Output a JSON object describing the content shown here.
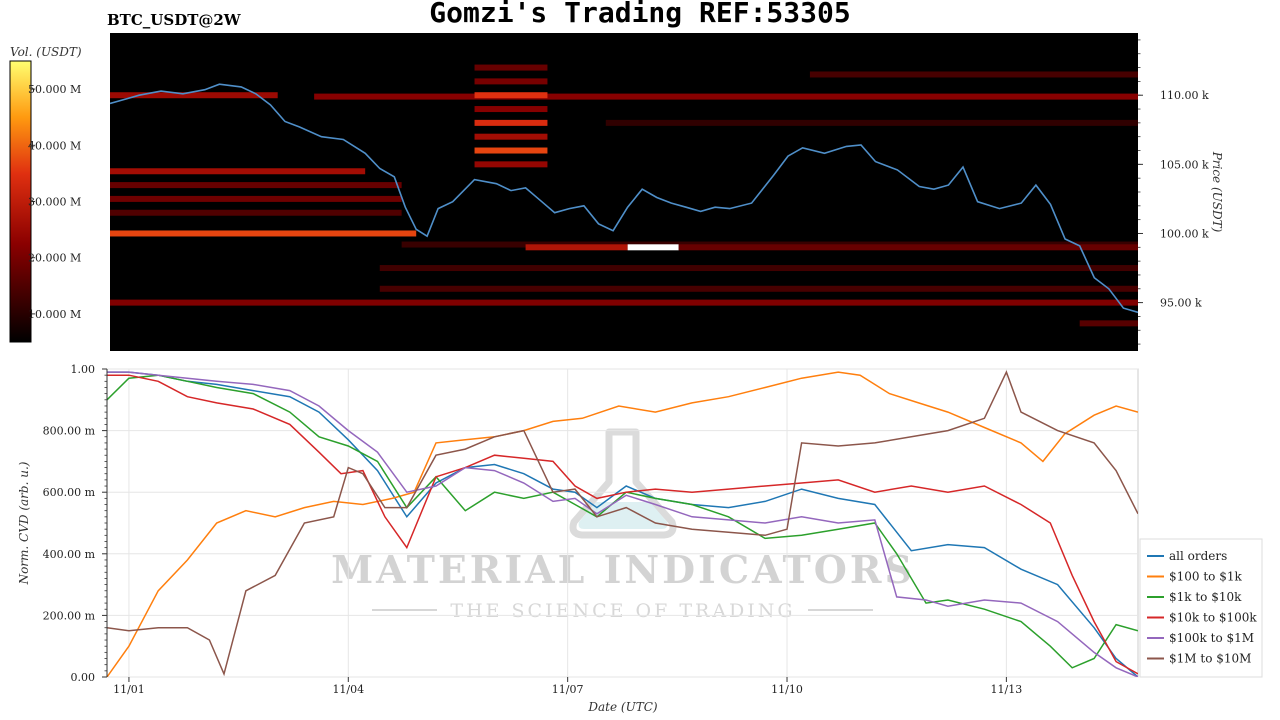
{
  "header": {
    "title": "Gomzi's Trading REF:53305",
    "symbol": "BTC_USDT@2W"
  },
  "colors": {
    "heat_low": "#000000",
    "heat_mid": "#cc1100",
    "heat_high": "#ffff55",
    "price_line": "#4f8fc9"
  },
  "watermark": {
    "brand": "MATERIAL INDICATORS",
    "tagline": "THE SCIENCE OF TRADING"
  },
  "chart_data": [
    {
      "type": "heatmap",
      "colorbar_label": "Vol. (USDT)",
      "colorbar_ticks": [
        "50.000 M",
        "40.000 M",
        "30.000 M",
        "20.000 M",
        "10.000 M"
      ],
      "colorbar_tick_values": [
        50,
        40,
        30,
        20,
        10
      ],
      "colorbar_range": [
        5,
        55
      ],
      "ylabel": "Price (USDT)",
      "y_ticks": [
        "110.00 k",
        "105.00 k",
        "100.00 k",
        "95.00 k"
      ],
      "y_tick_values": [
        110,
        105,
        100,
        95
      ],
      "ylim": [
        91.5,
        114.5
      ],
      "x_tick_values": [
        0.8,
        3.8,
        6.8,
        9.8,
        12.8
      ],
      "xlim": [
        0.5,
        14.6
      ],
      "price_series": {
        "x": [
          0.5,
          0.7,
          0.9,
          1.2,
          1.5,
          1.8,
          2.0,
          2.3,
          2.5,
          2.7,
          2.9,
          3.1,
          3.4,
          3.7,
          4.0,
          4.2,
          4.4,
          4.55,
          4.7,
          4.85,
          5.0,
          5.2,
          5.5,
          5.8,
          6.0,
          6.2,
          6.4,
          6.6,
          6.8,
          7.0,
          7.2,
          7.4,
          7.6,
          7.8,
          8.0,
          8.2,
          8.4,
          8.6,
          8.8,
          9.0,
          9.3,
          9.6,
          9.8,
          10.0,
          10.3,
          10.6,
          10.8,
          11.0,
          11.3,
          11.6,
          11.8,
          12.0,
          12.2,
          12.4,
          12.7,
          13.0,
          13.2,
          13.4,
          13.6,
          13.8,
          14.0,
          14.2,
          14.4,
          14.6
        ],
        "price_values": [
          109.4,
          109.7,
          110.0,
          110.3,
          110.1,
          110.4,
          110.8,
          110.6,
          110.1,
          109.3,
          108.1,
          107.7,
          107.0,
          106.8,
          105.8,
          104.7,
          104.1,
          101.9,
          100.3,
          99.8,
          101.8,
          102.3,
          103.9,
          103.6,
          103.1,
          103.3,
          102.4,
          101.5,
          101.8,
          102.0,
          100.7,
          100.2,
          101.9,
          103.2,
          102.6,
          102.2,
          101.9,
          101.6,
          101.9,
          101.8,
          102.2,
          104.2,
          105.6,
          106.2,
          105.8,
          106.3,
          106.4,
          105.2,
          104.6,
          103.4,
          103.2,
          103.5,
          104.8,
          102.3,
          101.8,
          102.2,
          103.5,
          102.1,
          99.6,
          99.1,
          96.8,
          96.0,
          94.6,
          94.3
        ]
      },
      "levels": [
        {
          "price": 110.0,
          "from": 0.5,
          "to": 2.8,
          "vol": 25,
          "name": "wall-110"
        },
        {
          "price": 109.9,
          "from": 3.3,
          "to": 14.6,
          "vol": 22,
          "name": "wall-109-9"
        },
        {
          "price": 111.5,
          "from": 10.1,
          "to": 14.6,
          "vol": 14,
          "name": "wall-111-5"
        },
        {
          "price": 108.0,
          "from": 7.3,
          "to": 14.6,
          "vol": 11,
          "name": "wall-108"
        },
        {
          "price": 104.5,
          "from": 0.5,
          "to": 4.0,
          "vol": 26,
          "name": "wall-104-5"
        },
        {
          "price": 103.5,
          "from": 0.5,
          "to": 4.5,
          "vol": 18,
          "name": "wall-103-5"
        },
        {
          "price": 102.5,
          "from": 0.5,
          "to": 4.5,
          "vol": 19,
          "name": "wall-102-5"
        },
        {
          "price": 101.5,
          "from": 0.5,
          "to": 4.5,
          "vol": 15,
          "name": "wall-101-5"
        },
        {
          "price": 100.0,
          "from": 0.5,
          "to": 4.7,
          "vol": 37,
          "name": "wall-100"
        },
        {
          "price": 99.2,
          "from": 4.5,
          "to": 14.6,
          "vol": 12,
          "name": "wall-99-2"
        },
        {
          "price": 99.0,
          "from": 6.2,
          "to": 7.6,
          "vol": 28,
          "name": "wall-99-a"
        },
        {
          "price": 99.0,
          "from": 7.6,
          "to": 8.3,
          "vol": 55,
          "name": "wall-99-b"
        },
        {
          "price": 99.0,
          "from": 8.3,
          "to": 14.6,
          "vol": 18,
          "name": "wall-99-c"
        },
        {
          "price": 97.5,
          "from": 4.2,
          "to": 14.6,
          "vol": 13,
          "name": "wall-97-5"
        },
        {
          "price": 96.0,
          "from": 4.2,
          "to": 14.6,
          "vol": 14,
          "name": "wall-96"
        },
        {
          "price": 95.0,
          "from": 0.5,
          "to": 14.6,
          "vol": 21,
          "name": "wall-95"
        },
        {
          "price": 93.5,
          "from": 13.8,
          "to": 14.6,
          "vol": 16,
          "name": "wall-93-5"
        },
        {
          "price": 112.0,
          "from": 5.5,
          "to": 6.5,
          "vol": 18,
          "name": "block-112"
        },
        {
          "price": 111.0,
          "from": 5.5,
          "to": 6.5,
          "vol": 20,
          "name": "block-111"
        },
        {
          "price": 110.0,
          "from": 5.5,
          "to": 6.5,
          "vol": 35,
          "name": "block-110"
        },
        {
          "price": 109.0,
          "from": 5.5,
          "to": 6.5,
          "vol": 22,
          "name": "block-109"
        },
        {
          "price": 108.0,
          "from": 5.5,
          "to": 6.5,
          "vol": 34,
          "name": "block-108"
        },
        {
          "price": 107.0,
          "from": 5.5,
          "to": 6.5,
          "vol": 26,
          "name": "block-107"
        },
        {
          "price": 106.0,
          "from": 5.5,
          "to": 6.5,
          "vol": 37,
          "name": "block-106"
        },
        {
          "price": 105.0,
          "from": 5.5,
          "to": 6.5,
          "vol": 24,
          "name": "block-105"
        }
      ]
    },
    {
      "type": "line",
      "xlabel": "Date (UTC)",
      "ylabel": "Norm. CVD (arb. u.)",
      "x_ticks": [
        "11/01",
        "11/04",
        "11/07",
        "11/10",
        "11/13"
      ],
      "x_tick_values": [
        0.8,
        3.8,
        6.8,
        9.8,
        12.8
      ],
      "xlim": [
        0.5,
        14.6
      ],
      "y_ticks": [
        "1.00",
        "800.00 m",
        "600.00 m",
        "400.00 m",
        "200.00 m",
        "0.00"
      ],
      "y_tick_values": [
        1.0,
        0.8,
        0.6,
        0.4,
        0.2,
        0.0
      ],
      "ylim": [
        0,
        1
      ],
      "grid": true,
      "legend": "right",
      "series": [
        {
          "name": "all orders",
          "color": "#1f77b4",
          "x": [
            0.5,
            0.8,
            1.2,
            1.6,
            2.0,
            2.5,
            3.0,
            3.4,
            3.8,
            4.2,
            4.6,
            5.0,
            5.4,
            5.8,
            6.2,
            6.6,
            6.9,
            7.2,
            7.6,
            8.0,
            8.5,
            9.0,
            9.5,
            10.0,
            10.5,
            11.0,
            11.5,
            12.0,
            12.5,
            13.0,
            13.5,
            14.0,
            14.3,
            14.6
          ],
          "values": [
            0.99,
            0.99,
            0.98,
            0.96,
            0.95,
            0.93,
            0.91,
            0.86,
            0.77,
            0.67,
            0.52,
            0.63,
            0.68,
            0.69,
            0.66,
            0.61,
            0.6,
            0.55,
            0.62,
            0.58,
            0.56,
            0.55,
            0.57,
            0.61,
            0.58,
            0.56,
            0.41,
            0.43,
            0.42,
            0.35,
            0.3,
            0.16,
            0.06,
            0.0
          ]
        },
        {
          "name": "$100 to $1k",
          "color": "#ff7f0e",
          "x": [
            0.5,
            0.8,
            1.2,
            1.6,
            2.0,
            2.4,
            2.8,
            3.2,
            3.6,
            4.0,
            4.4,
            4.7,
            5.0,
            5.4,
            5.8,
            6.2,
            6.6,
            7.0,
            7.5,
            8.0,
            8.5,
            9.0,
            9.5,
            10.0,
            10.5,
            10.8,
            11.2,
            11.6,
            12.0,
            12.5,
            13.0,
            13.3,
            13.6,
            14.0,
            14.3,
            14.6
          ],
          "values": [
            0.0,
            0.1,
            0.28,
            0.38,
            0.5,
            0.54,
            0.52,
            0.55,
            0.57,
            0.56,
            0.58,
            0.6,
            0.76,
            0.77,
            0.78,
            0.8,
            0.83,
            0.84,
            0.88,
            0.86,
            0.89,
            0.91,
            0.94,
            0.97,
            0.99,
            0.98,
            0.92,
            0.89,
            0.86,
            0.81,
            0.76,
            0.7,
            0.79,
            0.85,
            0.88,
            0.86
          ]
        },
        {
          "name": "$1k to $10k",
          "color": "#2ca02c",
          "x": [
            0.5,
            0.8,
            1.2,
            1.6,
            2.0,
            2.5,
            3.0,
            3.4,
            3.8,
            4.2,
            4.6,
            5.0,
            5.4,
            5.8,
            6.2,
            6.6,
            6.9,
            7.2,
            7.6,
            8.0,
            8.5,
            9.0,
            9.5,
            10.0,
            10.5,
            11.0,
            11.3,
            11.7,
            12.0,
            12.5,
            13.0,
            13.4,
            13.7,
            14.0,
            14.3,
            14.6
          ],
          "values": [
            0.9,
            0.97,
            0.98,
            0.96,
            0.94,
            0.92,
            0.86,
            0.78,
            0.75,
            0.7,
            0.55,
            0.65,
            0.54,
            0.6,
            0.58,
            0.6,
            0.56,
            0.52,
            0.6,
            0.58,
            0.56,
            0.52,
            0.45,
            0.46,
            0.48,
            0.5,
            0.4,
            0.24,
            0.25,
            0.22,
            0.18,
            0.1,
            0.03,
            0.06,
            0.17,
            0.15
          ]
        },
        {
          "name": "$10k to $100k",
          "color": "#d62728",
          "x": [
            0.5,
            0.8,
            1.2,
            1.6,
            2.0,
            2.5,
            3.0,
            3.4,
            3.7,
            4.0,
            4.3,
            4.6,
            5.0,
            5.4,
            5.8,
            6.2,
            6.6,
            6.9,
            7.2,
            7.6,
            8.0,
            8.5,
            9.0,
            9.5,
            10.0,
            10.5,
            11.0,
            11.5,
            12.0,
            12.5,
            13.0,
            13.4,
            13.7,
            14.0,
            14.3,
            14.6
          ],
          "values": [
            0.98,
            0.98,
            0.96,
            0.91,
            0.89,
            0.87,
            0.82,
            0.73,
            0.66,
            0.67,
            0.52,
            0.42,
            0.65,
            0.68,
            0.72,
            0.71,
            0.7,
            0.62,
            0.58,
            0.6,
            0.61,
            0.6,
            0.61,
            0.62,
            0.63,
            0.64,
            0.6,
            0.62,
            0.6,
            0.62,
            0.56,
            0.5,
            0.33,
            0.18,
            0.05,
            0.01
          ]
        },
        {
          "name": "$100k to $1M",
          "color": "#9467bd",
          "x": [
            0.5,
            0.8,
            1.2,
            1.6,
            2.0,
            2.5,
            3.0,
            3.4,
            3.8,
            4.2,
            4.6,
            5.0,
            5.4,
            5.8,
            6.2,
            6.6,
            6.9,
            7.2,
            7.6,
            8.0,
            8.5,
            9.0,
            9.5,
            10.0,
            10.5,
            11.0,
            11.3,
            11.7,
            12.0,
            12.5,
            13.0,
            13.5,
            14.0,
            14.3,
            14.6
          ],
          "values": [
            0.99,
            0.99,
            0.98,
            0.97,
            0.96,
            0.95,
            0.93,
            0.88,
            0.8,
            0.73,
            0.6,
            0.62,
            0.68,
            0.67,
            0.63,
            0.57,
            0.58,
            0.53,
            0.59,
            0.56,
            0.52,
            0.51,
            0.5,
            0.52,
            0.5,
            0.51,
            0.26,
            0.25,
            0.23,
            0.25,
            0.24,
            0.18,
            0.08,
            0.03,
            0.0
          ]
        },
        {
          "name": "$1M to $10M",
          "color": "#8c564b",
          "x": [
            0.5,
            0.8,
            1.2,
            1.6,
            1.9,
            2.1,
            2.4,
            2.8,
            3.2,
            3.6,
            3.8,
            4.0,
            4.3,
            4.6,
            5.0,
            5.4,
            5.8,
            6.2,
            6.6,
            6.9,
            7.2,
            7.6,
            8.0,
            8.5,
            9.0,
            9.5,
            9.8,
            10.0,
            10.5,
            11.0,
            11.5,
            12.0,
            12.5,
            12.8,
            13.0,
            13.5,
            14.0,
            14.3,
            14.6
          ],
          "values": [
            0.16,
            0.15,
            0.16,
            0.16,
            0.12,
            0.01,
            0.28,
            0.33,
            0.5,
            0.52,
            0.68,
            0.66,
            0.55,
            0.55,
            0.72,
            0.74,
            0.78,
            0.8,
            0.6,
            0.61,
            0.52,
            0.55,
            0.5,
            0.48,
            0.47,
            0.46,
            0.48,
            0.76,
            0.75,
            0.76,
            0.78,
            0.8,
            0.84,
            0.99,
            0.86,
            0.8,
            0.76,
            0.67,
            0.53
          ]
        }
      ]
    }
  ]
}
